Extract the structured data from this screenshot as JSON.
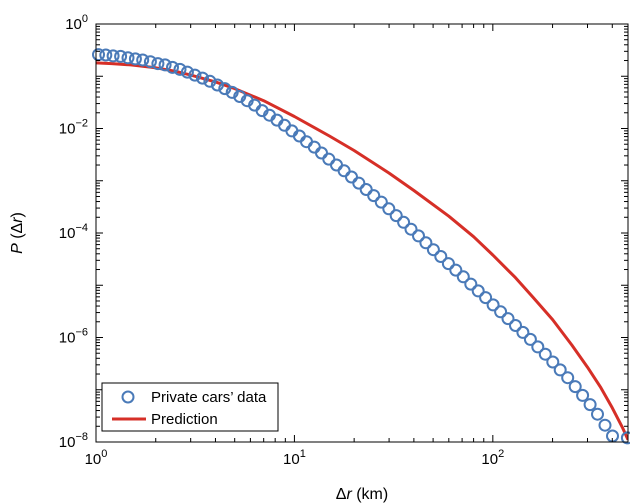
{
  "chart_data": {
    "type": "scatter",
    "xscale": "log",
    "yscale": "log",
    "xlim": [
      1,
      480
    ],
    "ylim": [
      1e-08,
      1
    ],
    "grid": false,
    "legend_position": "bottom-left",
    "xlabel": {
      "symbol": "Δ",
      "var": "r",
      "unit": " (km)"
    },
    "ylabel": {
      "var": "P",
      "rest": " (Δ",
      "var2": "r",
      "close": ")"
    },
    "x_ticks": [
      {
        "mant": "10",
        "exp": "0"
      },
      {
        "mant": "10",
        "exp": "1"
      },
      {
        "mant": "10",
        "exp": "2"
      }
    ],
    "y_ticks": [
      {
        "mant": "10",
        "exp": "0"
      },
      {
        "mant": "10",
        "exp": "−2"
      },
      {
        "mant": "10",
        "exp": "−4"
      },
      {
        "mant": "10",
        "exp": "−6"
      },
      {
        "mant": "10",
        "exp": "−8"
      }
    ],
    "series": [
      {
        "name": "Private cars’ data",
        "kind": "markers",
        "color": "#4a7ab8",
        "x": [
          1.03,
          1.12,
          1.22,
          1.33,
          1.45,
          1.58,
          1.72,
          1.88,
          2.05,
          2.23,
          2.43,
          2.65,
          2.89,
          3.15,
          3.44,
          3.75,
          4.09,
          4.46,
          4.86,
          5.3,
          5.78,
          6.3,
          6.87,
          7.49,
          8.17,
          8.91,
          9.71,
          10.6,
          11.5,
          12.6,
          13.7,
          14.9,
          16.3,
          17.8,
          19.4,
          21.1,
          23.0,
          25.1,
          27.4,
          29.9,
          32.6,
          35.5,
          38.7,
          42.2,
          46.0,
          50.2,
          54.7,
          59.7,
          65.1,
          71.0,
          77.4,
          84.4,
          92.0,
          100.3,
          109.4,
          119.3,
          130.1,
          141.8,
          154.6,
          168.6,
          183.9,
          200.5,
          218.6,
          238.4,
          260.0,
          283.5,
          309.1,
          337.1,
          367.6,
          400.8,
          437.1,
          476.6
        ],
        "y": [
          0.26,
          0.255,
          0.245,
          0.24,
          0.225,
          0.215,
          0.205,
          0.19,
          0.175,
          0.165,
          0.148,
          0.135,
          0.12,
          0.105,
          0.092,
          0.08,
          0.068,
          0.058,
          0.049,
          0.041,
          0.034,
          0.028,
          0.022,
          0.018,
          0.0145,
          0.0115,
          0.009,
          0.0072,
          0.0056,
          0.0044,
          0.0034,
          0.0026,
          0.002,
          0.00155,
          0.00118,
          0.0009,
          0.00068,
          0.00052,
          0.00039,
          0.00029,
          0.000215,
          0.00016,
          0.000118,
          8.8e-05,
          6.5e-05,
          4.8e-05,
          3.55e-05,
          2.6e-05,
          1.95e-05,
          1.45e-05,
          1.05e-05,
          7.8e-06,
          5.8e-06,
          4.2e-06,
          3.1e-06,
          2.3e-06,
          1.7e-06,
          1.25e-06,
          9.2e-07,
          6.6e-07,
          4.8e-07,
          3.4e-07,
          2.4e-07,
          1.7e-07,
          1.15e-07,
          7.8e-08,
          5.2e-08,
          3.4e-08,
          2.1e-08,
          1.3e-08,
          8e-09,
          1.2e-08
        ]
      },
      {
        "name": "Prediction",
        "kind": "line",
        "color": "#d62f27",
        "x": [
          1,
          1.2,
          1.5,
          2,
          2.5,
          3,
          4,
          5,
          7,
          10,
          15,
          20,
          30,
          40,
          60,
          80,
          100,
          130,
          160,
          200,
          250,
          300,
          350,
          400,
          450,
          480
        ],
        "y": [
          0.18,
          0.175,
          0.165,
          0.145,
          0.125,
          0.105,
          0.078,
          0.058,
          0.034,
          0.017,
          0.0072,
          0.0038,
          0.0014,
          0.00065,
          0.00021,
          8.5e-05,
          3.8e-05,
          1.4e-05,
          5.8e-06,
          2.2e-06,
          7.2e-07,
          2.7e-07,
          1.1e-07,
          4.5e-08,
          1.9e-08,
          1.1e-08
        ]
      }
    ]
  }
}
